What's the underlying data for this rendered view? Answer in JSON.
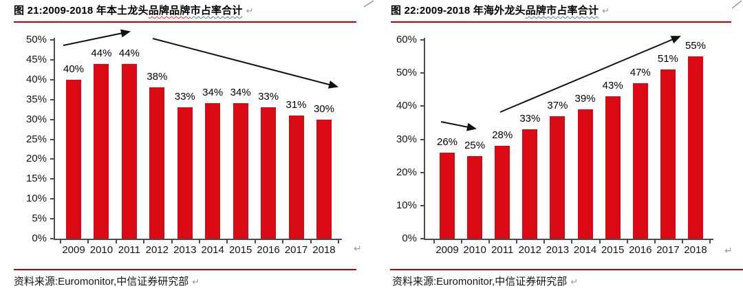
{
  "document": {
    "background": "#ffffff",
    "rule_red": "#c00000",
    "bar_red": "#da0a15",
    "axis_gray": "#4d4d4d"
  },
  "marks": {
    "return_mark": "↵"
  },
  "chart_data": [
    {
      "type": "bar",
      "figure_label": "图 21",
      "title": "图 21:2009-2018 年本土龙头品牌品牌市占率合计",
      "title_segments": [
        {
          "text": "图 21:2009-2018 年本土龙头",
          "wavy": "none"
        },
        {
          "text": "品牌品牌",
          "wavy": "red"
        },
        {
          "text": "市占率合计",
          "wavy": "blue"
        }
      ],
      "categories": [
        "2009",
        "2010",
        "2011",
        "2012",
        "2013",
        "2014",
        "2015",
        "2016",
        "2017",
        "2018"
      ],
      "values": [
        40,
        44,
        44,
        38,
        33,
        34,
        34,
        33,
        31,
        30
      ],
      "unit": "%",
      "ylim": [
        0,
        50
      ],
      "ytick_step": 5,
      "xlabel": "",
      "ylabel": "",
      "grid": false,
      "legend": "none",
      "bar_color": "#da0a15",
      "annotations": [
        {
          "kind": "trend-arrow",
          "direction": "up",
          "x1": 92,
          "y1": 66,
          "x2": 188,
          "y2": 46
        },
        {
          "kind": "trend-arrow",
          "direction": "down",
          "x1": 222,
          "y1": 56,
          "x2": 490,
          "y2": 126
        }
      ],
      "source": "资料来源:Euromonitor,中信证券研究部"
    },
    {
      "type": "bar",
      "figure_label": "图 22",
      "title": "图 22:2009-2018 年海外龙头品牌市占率合计",
      "title_segments": [
        {
          "text": "图 22:2009-2018 年海外龙头",
          "wavy": "none"
        },
        {
          "text": "",
          "wavy": "red"
        },
        {
          "text": "品牌市占率合计",
          "wavy": "blue"
        }
      ],
      "categories": [
        "2009",
        "2010",
        "2011",
        "2012",
        "2013",
        "2014",
        "2015",
        "2016",
        "2017",
        "2018"
      ],
      "values": [
        26,
        25,
        28,
        33,
        37,
        39,
        43,
        47,
        51,
        55
      ],
      "unit": "%",
      "ylim": [
        0,
        60
      ],
      "ytick_step": 10,
      "xlabel": "",
      "ylabel": "",
      "grid": false,
      "legend": "none",
      "bar_color": "#da0a15",
      "annotations": [
        {
          "kind": "trend-arrow",
          "direction": "flat",
          "x1": 93,
          "y1": 177,
          "x2": 143,
          "y2": 187
        },
        {
          "kind": "trend-arrow",
          "direction": "up",
          "x1": 179,
          "y1": 163,
          "x2": 440,
          "y2": 53
        }
      ],
      "source": "资料来源:Euromonitor,中信证券研究部"
    }
  ]
}
